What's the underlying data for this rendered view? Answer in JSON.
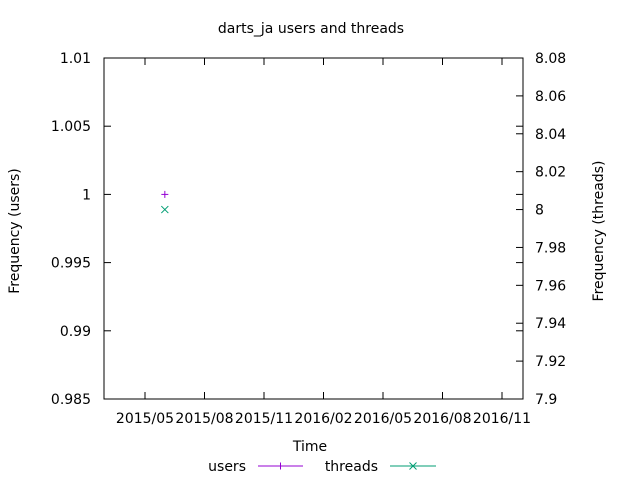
{
  "chart_data": {
    "type": "scatter",
    "title": "darts_ja users and threads",
    "xlabel": "Time",
    "ylabel_left": "Frequency (users)",
    "ylabel_right": "Frequency (threads)",
    "x_ticks": [
      "2015/05",
      "2015/08",
      "2015/11",
      "2016/02",
      "2016/05",
      "2016/08",
      "2016/11"
    ],
    "y_left_ticks": [
      "1.01",
      "1.005",
      "1",
      "0.995",
      "0.99",
      "0.985"
    ],
    "y_right_ticks": [
      "8.08",
      "8.06",
      "8.04",
      "8.02",
      "8",
      "7.98",
      "7.96",
      "7.94",
      "7.92",
      "7.9"
    ],
    "ylim_left": [
      0.985,
      1.01
    ],
    "ylim_right": [
      7.9,
      8.08
    ],
    "grid": false,
    "legend_position": "bottom-center",
    "series": [
      {
        "name": "users",
        "axis": "left",
        "marker": "plus",
        "color": "#9400d3",
        "points": [
          {
            "x": "2015/06",
            "y": 1
          }
        ]
      },
      {
        "name": "threads",
        "axis": "right",
        "marker": "cross",
        "color": "#009e73",
        "points": [
          {
            "x": "2015/06",
            "y": 8
          }
        ]
      }
    ]
  }
}
